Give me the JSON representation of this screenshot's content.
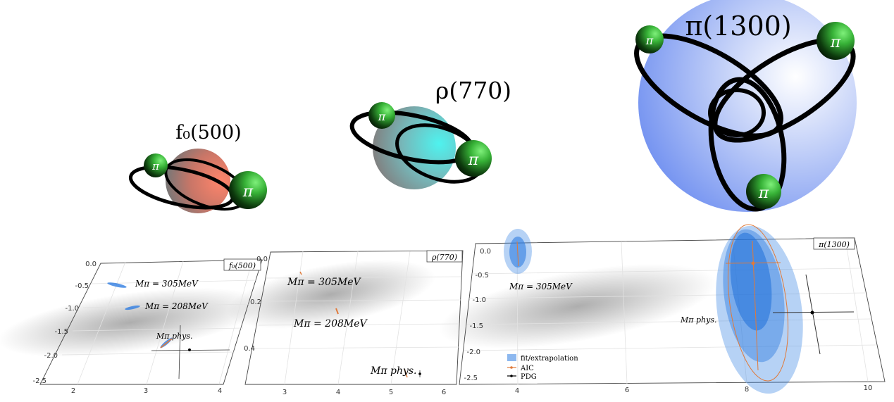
{
  "resonances": [
    {
      "label": "f₀(500)",
      "pion_symbol": "π",
      "color": "#e8735c"
    },
    {
      "label": "ρ(770)",
      "pion_symbol": "π",
      "color": "#4ee8e6"
    },
    {
      "label": "π(1300)",
      "pion_symbol": "π",
      "color": "#6f8ff0"
    }
  ],
  "panels": {
    "f0": {
      "tag": "f₀(500)",
      "x_ticks": [
        "2",
        "3",
        "4"
      ],
      "y_ticks": [
        "0.0",
        "-0.5",
        "-1.0",
        "-1.5",
        "-2.0",
        "-2.5"
      ],
      "annotations": [
        "Mπ = 305MeV",
        "Mπ = 208MeV",
        "Mπ phys."
      ]
    },
    "rho": {
      "tag": "ρ(770)",
      "x_ticks": [
        "3",
        "4",
        "5",
        "6"
      ],
      "y_ticks": [
        "0.0",
        "0.2",
        "0.4"
      ],
      "annotations": [
        "Mπ = 305MeV",
        "Mπ = 208MeV",
        "Mπ phys."
      ]
    },
    "pi1300": {
      "tag": "π(1300)",
      "x_ticks": [
        "4",
        "6",
        "8",
        "10"
      ],
      "y_ticks": [
        "0.0",
        "-0.5",
        "-1.0",
        "-1.5",
        "-2.0",
        "-2.5"
      ],
      "annotations": [
        "Mπ = 305MeV",
        "Mπ phys."
      ],
      "legend": [
        "fit/extrapolation",
        "AIC",
        "PDG"
      ]
    }
  },
  "colors": {
    "fit": "#2f7de1",
    "aic": "#e07a3a",
    "pdg": "#000000",
    "pion": "#3fbf3f"
  }
}
